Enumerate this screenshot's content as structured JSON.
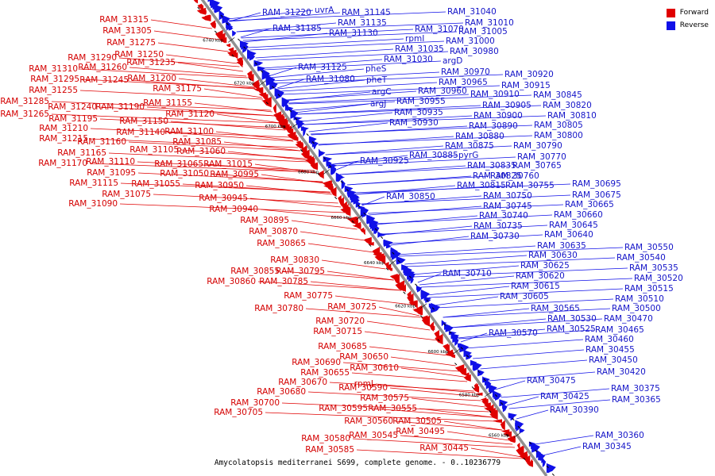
{
  "caption": "Amycolatopsis mediterranei S699, complete genome. - 0..10236779",
  "legend": [
    {
      "label": "Forward",
      "color": "#e00000"
    },
    {
      "label": "Reverse",
      "color": "#1010e8"
    }
  ],
  "colors": {
    "forward": "#e00000",
    "reverse": "#1010e8",
    "axis": "#888888"
  },
  "ticks": [
    "6740 kbp",
    "6720 kbp",
    "6700 kbp",
    "6680 kbp",
    "6660 kbp",
    "6640 kbp",
    "6620 kbp",
    "6600 kbp",
    "6580 kbp",
    "6560 kbp"
  ],
  "forward_labels": [
    "RAM_31315",
    "RAM_31305",
    "RAM_31275",
    "RAM_31250",
    "RAM_31290",
    "RAM_31260",
    "RAM_31235",
    "RAM_31310",
    "RAM_31295",
    "RAM_31245",
    "RAM_31200",
    "RAM_31255",
    "RAM_31175",
    "RAM_31285",
    "RAM_31240",
    "RAM_31190",
    "RAM_31155",
    "RAM_31265",
    "RAM_31120",
    "RAM_31195",
    "RAM_31150",
    "RAM_31210",
    "RAM_31140",
    "RAM_31100",
    "RAM_31215",
    "RAM_31160",
    "RAM_31085",
    "RAM_31165",
    "RAM_31105",
    "RAM_31060",
    "RAM_31170",
    "RAM_31110",
    "RAM_31065",
    "RAM_31015",
    "RAM_31095",
    "RAM_31050",
    "RAM_30995",
    "RAM_31115",
    "RAM_31055",
    "RAM_30950",
    "RAM_31075",
    "RAM_30945",
    "RAM_31090",
    "RAM_30940",
    "RAM_30895",
    "RAM_30870",
    "RAM_30865",
    "RAM_30830",
    "RAM_30855",
    "RAM_30795",
    "RAM_30860",
    "RAM_30785",
    "RAM_30775",
    "RAM_30780",
    "RAM_30725",
    "RAM_30720",
    "RAM_30715",
    "RAM_30685",
    "RAM_30650",
    "RAM_30690",
    "RAM_30610",
    "RAM_30655",
    "RAM_30670",
    "rpmJ",
    "RAM_30590",
    "RAM_30680",
    "RAM_30575",
    "RAM_30700",
    "RAM_30595",
    "RAM_30555",
    "RAM_30705",
    "RAM_30560",
    "RAM_30505",
    "RAM_30545",
    "RAM_30495",
    "RAM_30580",
    "RAM_30585",
    "RAM_30445"
  ],
  "reverse_labels": [
    "RAM_31220",
    "uvrA",
    "RAM_31145",
    "RAM_31040",
    "RAM_31135",
    "RAM_31185",
    "RAM_31130",
    "RAM_31010",
    "RAM_31070",
    "RAM_31005",
    "rpmI",
    "RAM_31000",
    "RAM_31035",
    "RAM_30980",
    "RAM_31030",
    "argD",
    "RAM_31125",
    "pheS",
    "RAM_30970",
    "RAM_30920",
    "RAM_31080",
    "pheT",
    "RAM_30965",
    "RAM_30915",
    "argC",
    "RAM_30960",
    "RAM_30910",
    "RAM_30845",
    "argJ",
    "RAM_30955",
    "RAM_30905",
    "RAM_30820",
    "RAM_30935",
    "RAM_30900",
    "RAM_30810",
    "RAM_30930",
    "RAM_30890",
    "RAM_30805",
    "RAM_30880",
    "RAM_30800",
    "RAM_30875",
    "RAM_30790",
    "RAM_30885",
    "pyrG",
    "RAM_30770",
    "RAM_30925",
    "RAM_30835",
    "RAM_30765",
    "RAM_30825",
    "RAM_30760",
    "RAM_30815",
    "RAM_30755",
    "RAM_30695",
    "RAM_30850",
    "RAM_30750",
    "RAM_30675",
    "RAM_30745",
    "RAM_30665",
    "RAM_30740",
    "RAM_30660",
    "RAM_30735",
    "RAM_30645",
    "RAM_30730",
    "RAM_30640",
    "RAM_30635",
    "RAM_30550",
    "RAM_30630",
    "RAM_30540",
    "RAM_30625",
    "RAM_30535",
    "RAM_30710",
    "RAM_30620",
    "RAM_30520",
    "RAM_30615",
    "RAM_30515",
    "RAM_30605",
    "RAM_30510",
    "RAM_30565",
    "RAM_30500",
    "RAM_30530",
    "RAM_30470",
    "RAM_30570",
    "RAM_30525",
    "RAM_30465",
    "RAM_30460",
    "RAM_30455",
    "RAM_30450",
    "RAM_30475",
    "RAM_30420",
    "RAM_30375",
    "RAM_30425",
    "RAM_30365",
    "RAM_30390",
    "RAM_30360",
    "RAM_30345"
  ]
}
